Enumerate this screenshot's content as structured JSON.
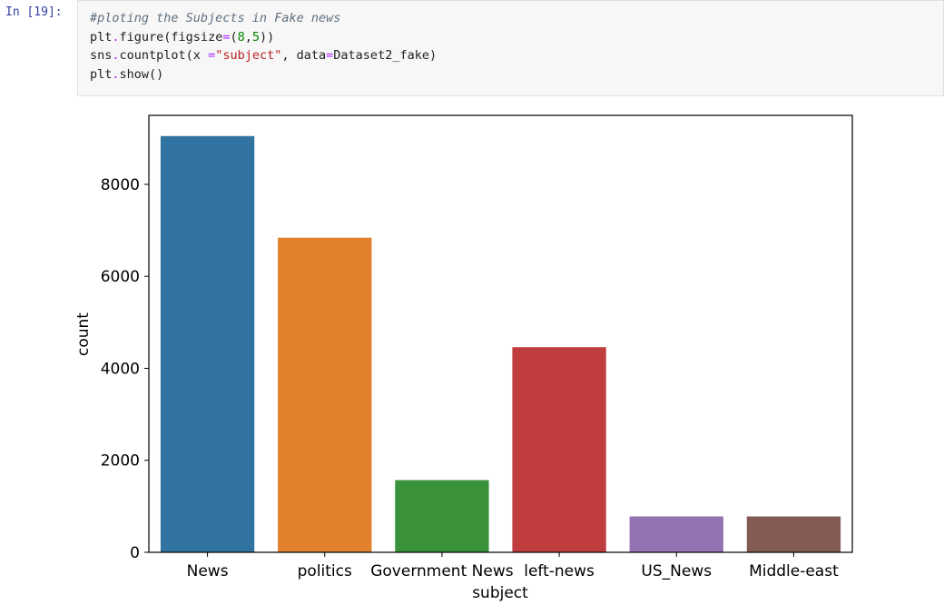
{
  "cell": {
    "prompt": "In [19]:",
    "code": {
      "comment": "#ploting the Subjects in Fake news",
      "line2": {
        "a": "plt",
        "b": ".",
        "c": "figure(figsize",
        "d": "=",
        "e": "(",
        "f": "8",
        "g": ",",
        "h": "5",
        "i": "))"
      },
      "line3": {
        "a": "sns",
        "b": ".",
        "c": "countplot(x ",
        "d": "=",
        "e": "\"subject\"",
        "f": ", data",
        "g": "=",
        "h": "Dataset2_fake)"
      },
      "line4": {
        "a": "plt",
        "b": ".",
        "c": "show()"
      }
    }
  },
  "chart_data": {
    "type": "bar",
    "categories": [
      "News",
      "politics",
      "Government News",
      "left-news",
      "US_News",
      "Middle-east"
    ],
    "values": [
      9050,
      6840,
      1570,
      4460,
      780,
      780
    ],
    "colors": [
      "#3274a1",
      "#e1812c",
      "#3a923a",
      "#c03d3e",
      "#9372b2",
      "#845b53"
    ],
    "xlabel": "subject",
    "ylabel": "count",
    "ylim": [
      0,
      9500
    ],
    "yticks": [
      0,
      2000,
      4000,
      6000,
      8000
    ],
    "grid": false
  }
}
